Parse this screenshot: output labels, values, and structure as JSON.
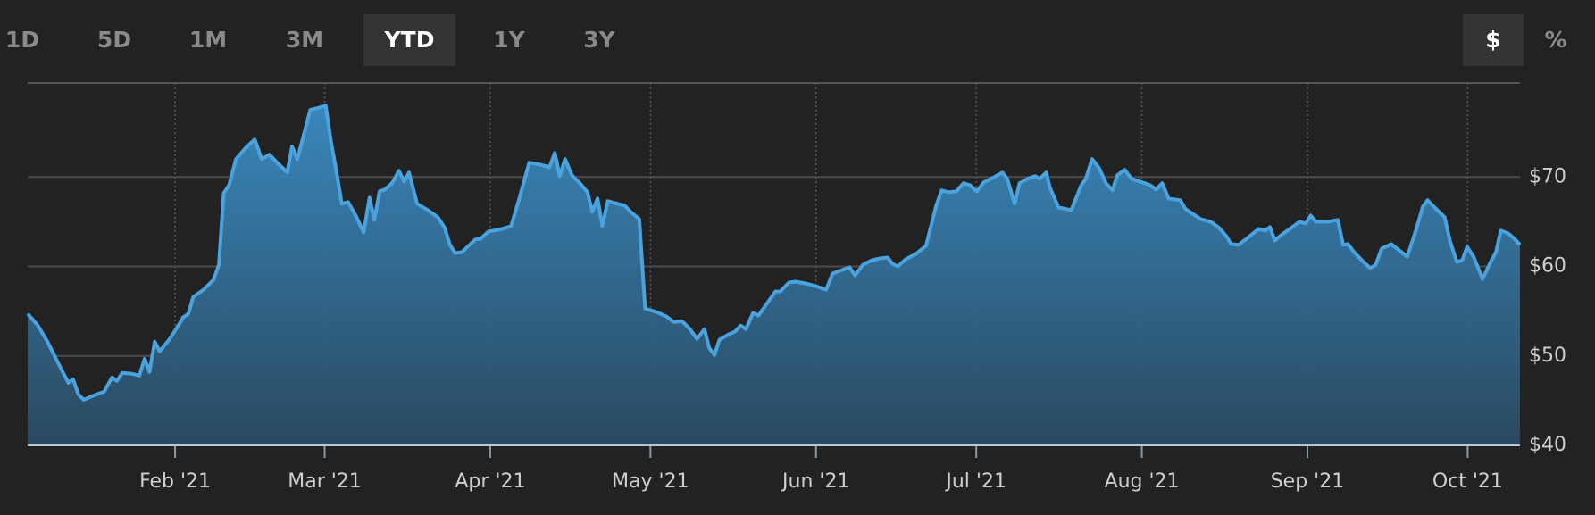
{
  "controls": {
    "ranges": [
      "1D",
      "5D",
      "1M",
      "3M",
      "YTD",
      "1Y",
      "3Y"
    ],
    "active_range": 4,
    "units": [
      "$",
      "%"
    ],
    "active_unit": 0
  },
  "chart_data": {
    "type": "area",
    "color": "#4aa3de",
    "xlim": [
      3.4,
      282.8
    ],
    "ylim": [
      40,
      80.5
    ],
    "xticks": [
      {
        "value": 31,
        "label": "Feb '21"
      },
      {
        "value": 59,
        "label": "Mar '21"
      },
      {
        "value": 90,
        "label": "Apr '21"
      },
      {
        "value": 120,
        "label": "May '21"
      },
      {
        "value": 151,
        "label": "Jun '21"
      },
      {
        "value": 181,
        "label": "Jul '21"
      },
      {
        "value": 212,
        "label": "Aug '21"
      },
      {
        "value": 243,
        "label": "Sep '21"
      },
      {
        "value": 273,
        "label": "Oct '21"
      }
    ],
    "yticks": [
      {
        "value": 40,
        "label": "$40"
      },
      {
        "value": 50,
        "label": "$50"
      },
      {
        "value": 60,
        "label": "$60"
      },
      {
        "value": 70,
        "label": "$70"
      }
    ],
    "grid": true,
    "x": [
      3.4,
      5.3,
      7.2,
      9.1,
      11.0,
      11.9,
      12.9,
      13.9,
      15.8,
      17.7,
      19.2,
      20.1,
      21.1,
      23.0,
      24.3,
      25.3,
      26.2,
      27.2,
      28.1,
      30.0,
      31.6,
      32.5,
      33.5,
      34.4,
      36.3,
      38.2,
      39.2,
      40.1,
      41.1,
      42.4,
      44.3,
      45.9,
      47.2,
      48.7,
      50.1,
      52.0,
      52.9,
      53.9,
      56.3,
      57.7,
      59.2,
      60.2,
      61.1,
      62.2,
      63.4,
      64.9,
      66.3,
      67.4,
      68.3,
      69.3,
      70.3,
      71.6,
      72.9,
      73.9,
      74.8,
      76.3,
      78.3,
      80.2,
      81.5,
      82.4,
      83.4,
      84.7,
      86.3,
      87.2,
      88.2,
      89.7,
      91.6,
      93.9,
      95.4,
      97.3,
      99.2,
      101.1,
      102.1,
      103.0,
      104.0,
      105.3,
      106.8,
      108.2,
      109.1,
      110.1,
      111.0,
      112.0,
      113.9,
      115.2,
      116.3,
      117.9,
      119.0,
      121.1,
      123.0,
      124.3,
      125.9,
      127.4,
      128.7,
      130.1,
      131.0,
      132.0,
      132.9,
      134.6,
      135.8,
      136.9,
      137.9,
      139.2,
      140.2,
      142.1,
      143.4,
      144.3,
      145.9,
      147.2,
      149.1,
      151.0,
      152.9,
      154.1,
      155.4,
      157.3,
      158.3,
      159.8,
      161.5,
      163.0,
      164.4,
      165.3,
      166.3,
      167.8,
      169.7,
      171.6,
      173.5,
      174.5,
      175.8,
      177.3,
      178.6,
      179.8,
      181.1,
      182.4,
      184.4,
      185.9,
      186.8,
      188.2,
      189.1,
      190.6,
      192.0,
      192.9,
      194.1,
      194.8,
      196.4,
      198.8,
      200.6,
      201.5,
      202.7,
      204.0,
      205.3,
      206.5,
      207.4,
      208.8,
      210.1,
      211.6,
      213.5,
      214.7,
      215.8,
      217.0,
      219.2,
      220.2,
      221.5,
      223.0,
      224.9,
      226.5,
      227.8,
      228.7,
      230.1,
      231.6,
      233.9,
      235.0,
      236.0,
      236.9,
      238.3,
      240.2,
      241.5,
      242.7,
      243.6,
      244.6,
      246.8,
      248.7,
      249.7,
      250.6,
      251.6,
      253.5,
      254.8,
      255.8,
      256.9,
      258.7,
      260.2,
      261.7,
      263.4,
      264.6,
      265.5,
      266.8,
      268.7,
      269.7,
      271.0,
      272.0,
      272.9,
      274.1,
      275.8,
      277.3,
      278.3,
      279.2,
      280.6,
      282.1,
      282.8
    ],
    "values": [
      54.7,
      53.4,
      51.5,
      49.2,
      47.0,
      47.4,
      45.7,
      45.1,
      45.6,
      46.0,
      47.6,
      47.2,
      48.1,
      48.0,
      47.8,
      49.7,
      48.2,
      51.6,
      50.5,
      51.9,
      53.4,
      54.3,
      54.7,
      56.6,
      57.4,
      58.5,
      60.2,
      68.2,
      69.1,
      72.0,
      73.3,
      74.2,
      72.0,
      72.5,
      71.6,
      70.5,
      73.4,
      72.0,
      77.5,
      77.7,
      78.0,
      73.9,
      71.0,
      67.0,
      67.2,
      65.6,
      63.8,
      67.7,
      65.2,
      68.4,
      68.6,
      69.3,
      70.7,
      69.5,
      70.5,
      67.0,
      66.3,
      65.5,
      64.3,
      62.5,
      61.5,
      61.6,
      62.5,
      63.0,
      63.1,
      63.9,
      64.1,
      64.5,
      67.5,
      71.6,
      71.4,
      71.1,
      72.7,
      70.1,
      72.0,
      70.2,
      69.3,
      68.3,
      66.1,
      67.6,
      64.5,
      67.3,
      67.0,
      66.8,
      66.1,
      65.3,
      55.3,
      54.9,
      54.4,
      53.8,
      53.9,
      53.0,
      51.9,
      53.0,
      50.9,
      50.1,
      51.8,
      52.4,
      52.7,
      53.4,
      53.0,
      54.8,
      54.5,
      56.1,
      57.2,
      57.2,
      58.2,
      58.3,
      58.1,
      57.8,
      57.4,
      59.2,
      59.5,
      59.9,
      59.0,
      60.2,
      60.7,
      60.9,
      61.0,
      60.3,
      60.0,
      60.8,
      61.4,
      62.3,
      66.8,
      68.5,
      68.3,
      68.4,
      69.3,
      69.1,
      68.4,
      69.4,
      70.0,
      70.5,
      69.8,
      67.0,
      69.3,
      69.8,
      70.1,
      69.8,
      70.5,
      68.8,
      66.6,
      66.3,
      69.0,
      69.8,
      72.0,
      71.0,
      69.3,
      68.5,
      70.2,
      70.8,
      69.8,
      69.5,
      69.1,
      68.6,
      69.3,
      67.6,
      67.4,
      66.4,
      65.9,
      65.3,
      65.0,
      64.3,
      63.4,
      62.5,
      62.4,
      63.1,
      64.2,
      64.0,
      64.4,
      62.9,
      63.6,
      64.4,
      65.0,
      64.8,
      65.7,
      65.0,
      65.0,
      65.2,
      62.4,
      62.5,
      61.7,
      60.5,
      59.8,
      60.2,
      62.0,
      62.5,
      61.8,
      61.1,
      64.2,
      66.7,
      67.4,
      66.6,
      65.5,
      62.8,
      60.5,
      60.7,
      62.2,
      61.1,
      58.6,
      60.5,
      61.6,
      64.0,
      63.7,
      62.9,
      62.4
    ]
  }
}
